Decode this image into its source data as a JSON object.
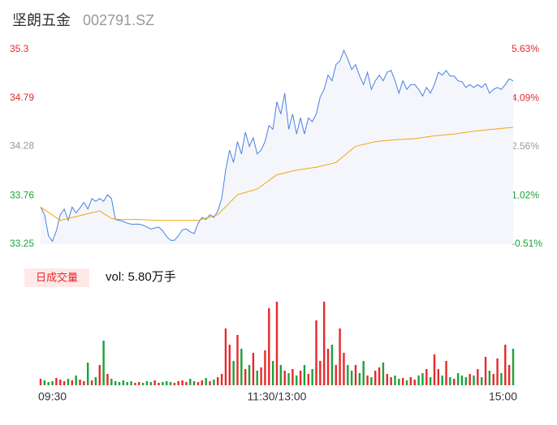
{
  "chart_data": [
    {
      "type": "line",
      "title": "坚朗五金",
      "subtitle": "002791.SZ",
      "x": [
        0,
        2,
        4,
        6,
        8,
        10,
        12,
        14,
        16,
        18,
        20,
        22,
        24,
        26,
        28,
        30,
        32,
        34,
        36,
        38,
        40,
        42,
        44,
        46,
        48,
        50,
        52,
        54,
        56,
        58,
        60,
        62,
        64,
        66,
        68,
        70,
        72,
        74,
        76,
        78,
        80,
        82,
        84,
        86,
        88,
        90,
        92,
        94,
        96,
        98,
        100,
        102,
        104,
        106,
        108,
        110,
        112,
        114,
        116,
        118,
        120,
        122,
        124,
        126,
        128,
        130,
        132,
        134,
        136,
        138,
        140,
        142,
        144,
        146,
        148,
        150,
        152,
        154,
        156,
        158,
        160,
        162,
        164,
        166,
        168,
        170,
        172,
        174,
        176,
        178,
        180,
        182,
        184,
        186,
        188,
        190,
        192,
        194,
        196,
        198,
        200,
        202,
        204,
        206,
        208,
        210,
        212,
        214,
        216,
        218,
        220,
        222,
        224,
        226,
        228,
        230,
        232,
        234,
        236,
        238,
        240
      ],
      "xlim": [
        0,
        240
      ],
      "series": [
        {
          "color": "#4a80e0",
          "values": [
            33.64,
            33.56,
            33.34,
            33.28,
            33.39,
            33.56,
            33.62,
            33.5,
            33.64,
            33.58,
            33.63,
            33.69,
            33.62,
            33.73,
            33.7,
            33.73,
            33.7,
            33.77,
            33.73,
            33.51,
            33.5,
            33.49,
            33.47,
            33.46,
            33.46,
            33.46,
            33.45,
            33.43,
            33.41,
            33.42,
            33.43,
            33.39,
            33.33,
            33.29,
            33.29,
            33.34,
            33.4,
            33.41,
            33.38,
            33.36,
            33.47,
            33.53,
            33.51,
            33.56,
            33.53,
            33.6,
            33.73,
            34.03,
            34.24,
            34.11,
            34.33,
            34.2,
            34.43,
            34.28,
            34.37,
            34.2,
            34.24,
            34.33,
            34.5,
            34.46,
            34.75,
            34.62,
            34.84,
            34.46,
            34.62,
            34.41,
            34.58,
            34.41,
            34.58,
            34.54,
            34.62,
            34.8,
            34.88,
            35.03,
            34.97,
            35.14,
            35.18,
            35.29,
            35.2,
            35.09,
            35.14,
            35.02,
            34.93,
            35.06,
            34.88,
            34.97,
            35.03,
            34.97,
            35.06,
            35.08,
            34.97,
            34.84,
            34.97,
            34.88,
            34.93,
            34.93,
            34.88,
            34.81,
            34.9,
            34.84,
            34.93,
            35.06,
            35.03,
            35.08,
            35.02,
            35.02,
            34.97,
            34.96,
            34.9,
            34.93,
            34.9,
            34.93,
            34.9,
            34.94,
            34.84,
            34.88,
            34.9,
            34.88,
            34.93,
            34.99,
            34.97
          ]
        },
        {
          "color": "#f0a80a",
          "x": [
            0,
            10,
            20,
            30,
            36,
            40,
            50,
            60,
            70,
            80,
            90,
            100,
            110,
            120,
            130,
            140,
            150,
            160,
            170,
            180,
            190,
            200,
            210,
            220,
            230,
            240
          ],
          "values": [
            33.64,
            33.5,
            33.55,
            33.6,
            33.52,
            33.51,
            33.51,
            33.5,
            33.5,
            33.5,
            33.56,
            33.77,
            33.83,
            33.98,
            34.03,
            34.06,
            34.11,
            34.28,
            34.33,
            34.35,
            34.36,
            34.39,
            34.41,
            34.44,
            34.46,
            34.48
          ]
        }
      ],
      "ylim": [
        33.25,
        35.3
      ],
      "yticks": [
        33.25,
        33.76,
        34.28,
        34.79,
        35.3
      ],
      "y2lim": [
        -0.51,
        5.63
      ],
      "y2ticks": [
        {
          "value": -0.51,
          "label": "-0.51%"
        },
        {
          "value": 1.02,
          "label": "1.02%"
        },
        {
          "value": 2.56,
          "label": "2.56%"
        },
        {
          "value": 4.09,
          "label": "4.09%"
        },
        {
          "value": 5.63,
          "label": "5.63%"
        }
      ],
      "up_color": "#e8282b",
      "down_color": "#1aa33a",
      "flat_color": "#999999",
      "area_color": "#f4f6fb"
    },
    {
      "type": "bar",
      "label": "日成交量",
      "volume_label": "vol: 5.80万手",
      "values": [
        8,
        6,
        4,
        5,
        9,
        7,
        5,
        8,
        6,
        12,
        7,
        5,
        28,
        6,
        10,
        25,
        55,
        14,
        8,
        5,
        4,
        6,
        4,
        5,
        3,
        4,
        3,
        5,
        4,
        6,
        3,
        4,
        5,
        4,
        3,
        5,
        6,
        4,
        8,
        5,
        4,
        6,
        9,
        5,
        7,
        10,
        14,
        70,
        50,
        30,
        62,
        45,
        20,
        25,
        40,
        18,
        22,
        43,
        95,
        30,
        103,
        25,
        18,
        15,
        20,
        12,
        18,
        25,
        14,
        20,
        80,
        30,
        103,
        45,
        50,
        25,
        70,
        40,
        25,
        18,
        25,
        15,
        30,
        12,
        10,
        18,
        22,
        28,
        14,
        10,
        12,
        8,
        9,
        6,
        10,
        7,
        12,
        15,
        20,
        10,
        38,
        20,
        12,
        30,
        10,
        8,
        15,
        12,
        10,
        14,
        12,
        20,
        10,
        35,
        18,
        14,
        33,
        15,
        50,
        25,
        45
      ],
      "ylim": [
        0,
        110
      ],
      "xlim": [
        0,
        240
      ],
      "xticks": [
        {
          "value": 0,
          "label": "09:30"
        },
        {
          "value": 120,
          "label": "11:30/13:00"
        },
        {
          "value": 240,
          "label": "15:00"
        }
      ],
      "up_color": "#e8282b",
      "down_color": "#1aa33a"
    }
  ]
}
